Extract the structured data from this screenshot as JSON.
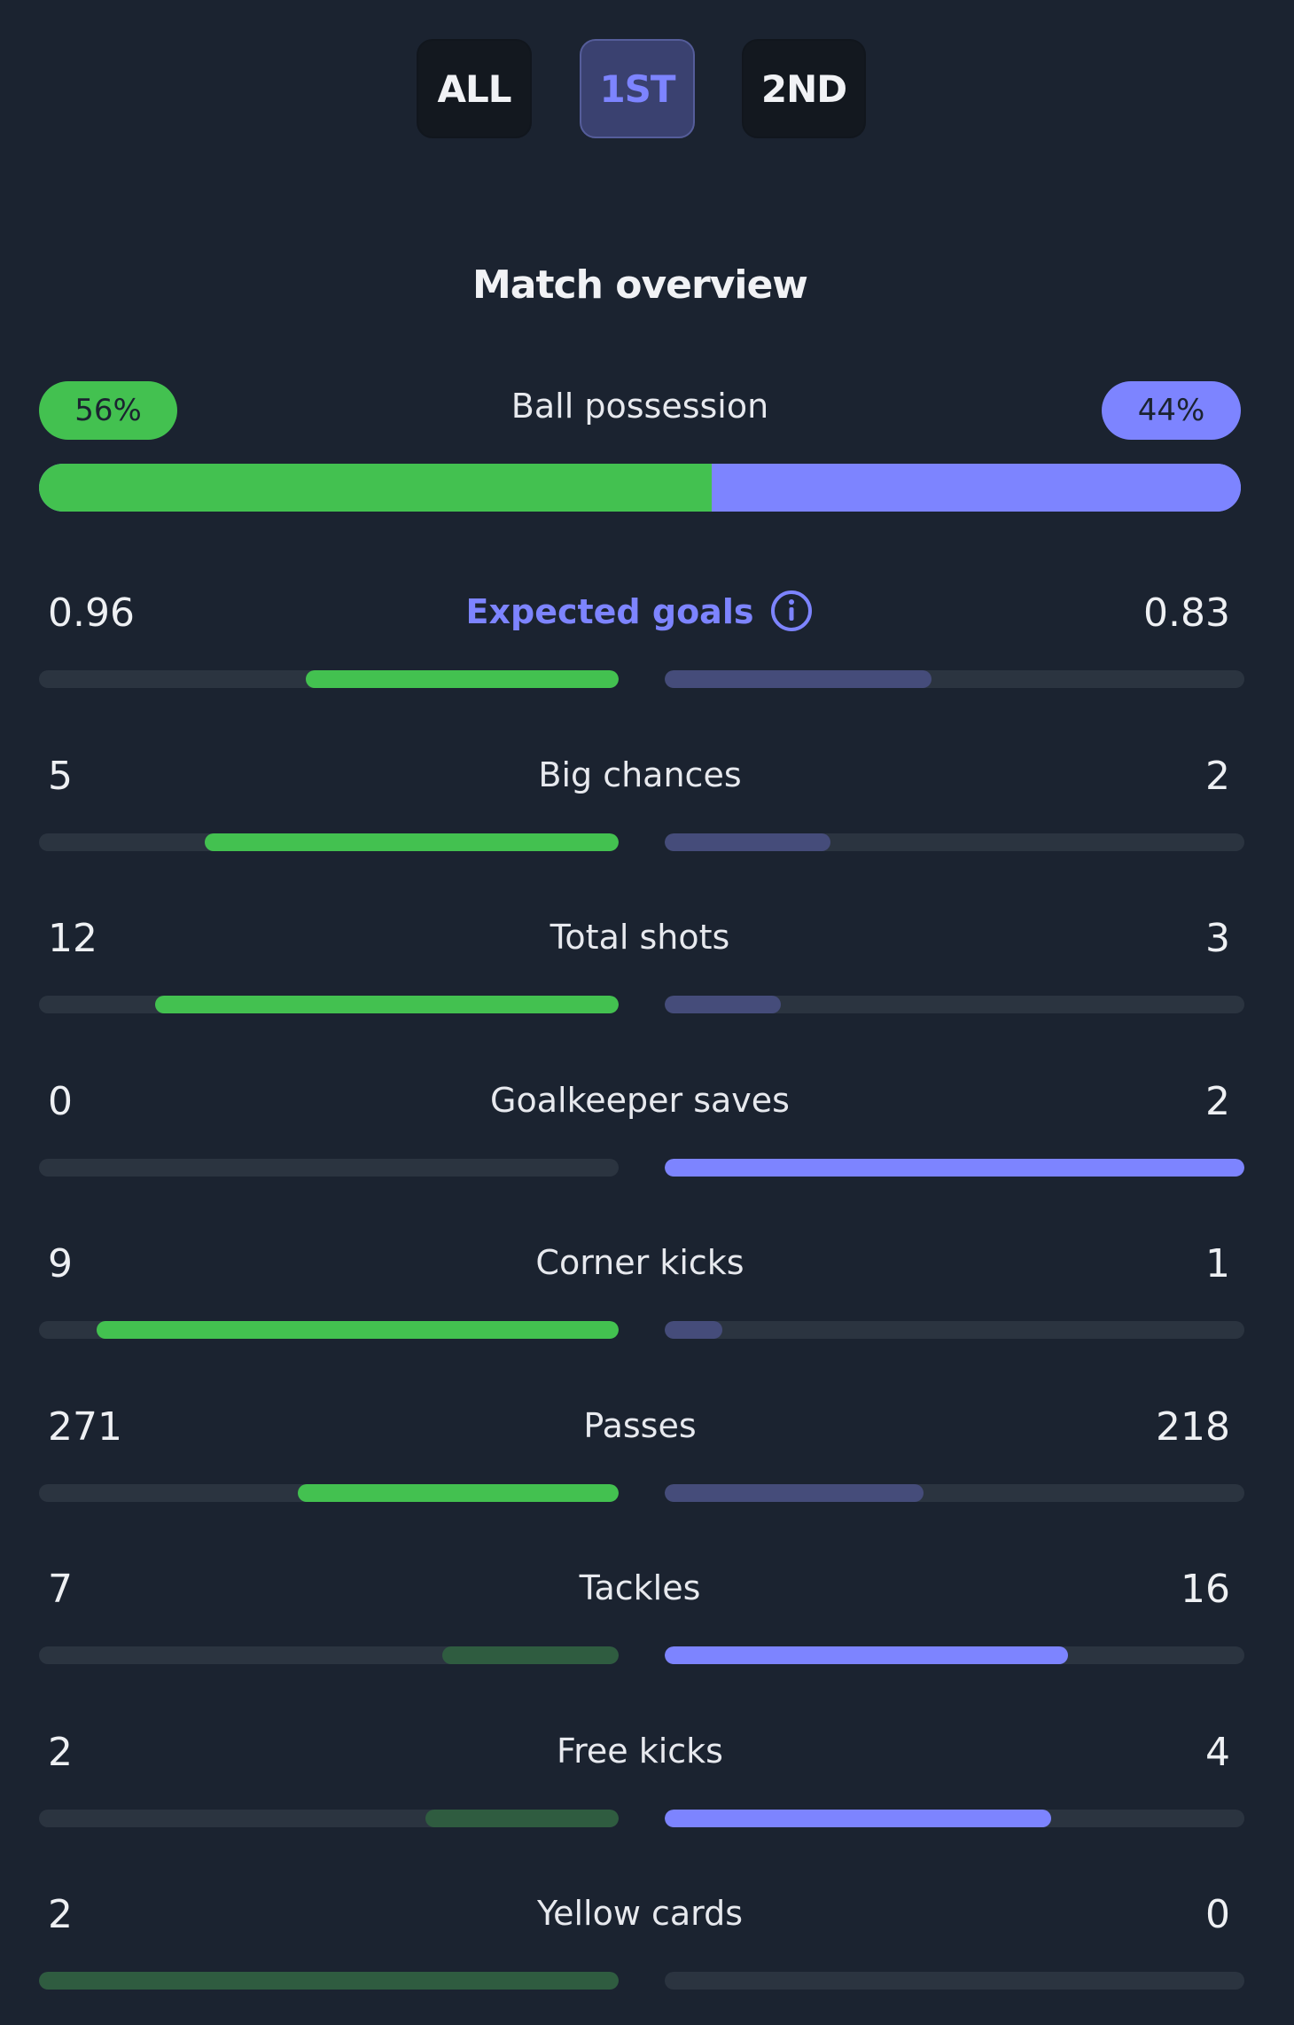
{
  "tabs": [
    {
      "label": "ALL",
      "active": false
    },
    {
      "label": "1ST",
      "active": true
    },
    {
      "label": "2ND",
      "active": false
    }
  ],
  "section_title": "Match overview",
  "colors": {
    "home": "#43c150",
    "home_muted": "#2f5c40",
    "away": "#7d84ff",
    "away_muted": "#454c7a",
    "track": "#2b3440",
    "background": "#1b2330"
  },
  "possession": {
    "label": "Ball possession",
    "home": "56%",
    "away": "44%",
    "home_fraction": 0.56,
    "away_fraction": 0.44
  },
  "stats": [
    {
      "label": "Expected goals",
      "home": "0.96",
      "away": "0.83",
      "home_fraction": 0.54,
      "away_fraction": 0.46,
      "home_highlight": true,
      "away_highlight": false,
      "link": true,
      "icon": "info-icon"
    },
    {
      "label": "Big chances",
      "home": "5",
      "away": "2",
      "home_fraction": 0.714,
      "away_fraction": 0.286,
      "home_highlight": true,
      "away_highlight": false
    },
    {
      "label": "Total shots",
      "home": "12",
      "away": "3",
      "home_fraction": 0.8,
      "away_fraction": 0.2,
      "home_highlight": true,
      "away_highlight": false
    },
    {
      "label": "Goalkeeper saves",
      "home": "0",
      "away": "2",
      "home_fraction": 0.0,
      "away_fraction": 1.0,
      "home_highlight": false,
      "away_highlight": true
    },
    {
      "label": "Corner kicks",
      "home": "9",
      "away": "1",
      "home_fraction": 0.9,
      "away_fraction": 0.1,
      "home_highlight": true,
      "away_highlight": false
    },
    {
      "label": "Passes",
      "home": "271",
      "away": "218",
      "home_fraction": 0.554,
      "away_fraction": 0.446,
      "home_highlight": true,
      "away_highlight": false
    },
    {
      "label": "Tackles",
      "home": "7",
      "away": "16",
      "home_fraction": 0.304,
      "away_fraction": 0.696,
      "home_highlight": false,
      "away_highlight": true
    },
    {
      "label": "Free kicks",
      "home": "2",
      "away": "4",
      "home_fraction": 0.333,
      "away_fraction": 0.667,
      "home_highlight": false,
      "away_highlight": true
    },
    {
      "label": "Yellow cards",
      "home": "2",
      "away": "0",
      "home_fraction": 1.0,
      "away_fraction": 0.0,
      "home_highlight": false,
      "away_highlight": false
    }
  ]
}
